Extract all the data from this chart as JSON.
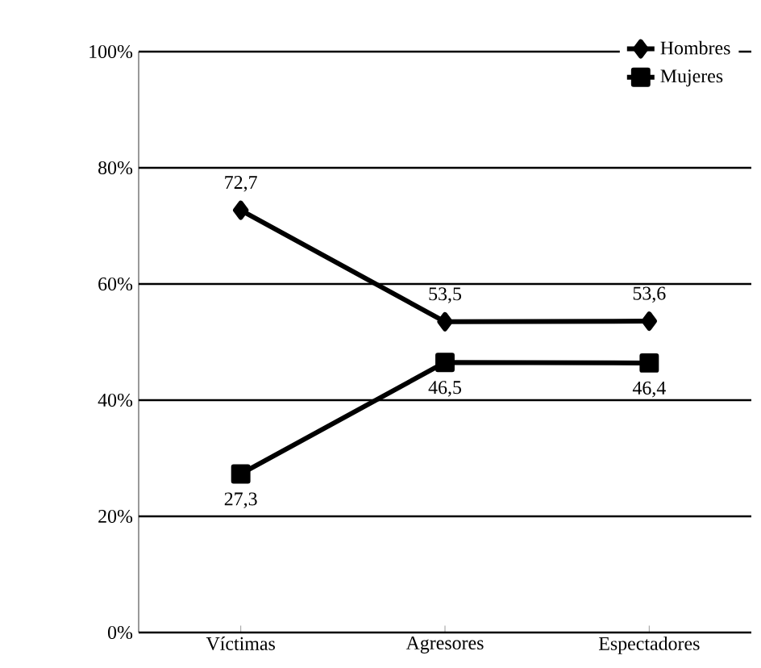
{
  "chart_data": {
    "type": "line",
    "categories": [
      "Víctimas",
      "Agresores",
      "Espectadores"
    ],
    "series": [
      {
        "name": "Hombres",
        "color": "#000000",
        "marker": "diamond",
        "values": [
          72.7,
          53.5,
          53.6
        ],
        "value_labels": [
          "72,7",
          "53,5",
          "53,6"
        ]
      },
      {
        "name": "Mujeres",
        "color": "#000000",
        "marker": "square",
        "values": [
          27.3,
          46.5,
          46.4
        ],
        "value_labels": [
          "27,3",
          "46,5",
          "46,4"
        ]
      }
    ],
    "ylim": [
      0,
      100
    ],
    "yticks": [
      {
        "value": 0,
        "label": "0%"
      },
      {
        "value": 20,
        "label": "20%"
      },
      {
        "value": 40,
        "label": "40%"
      },
      {
        "value": 60,
        "label": "60%"
      },
      {
        "value": 80,
        "label": "80%"
      },
      {
        "value": 100,
        "label": "100%"
      }
    ],
    "grid": "y",
    "legend": "top right",
    "line_style": "solid"
  }
}
